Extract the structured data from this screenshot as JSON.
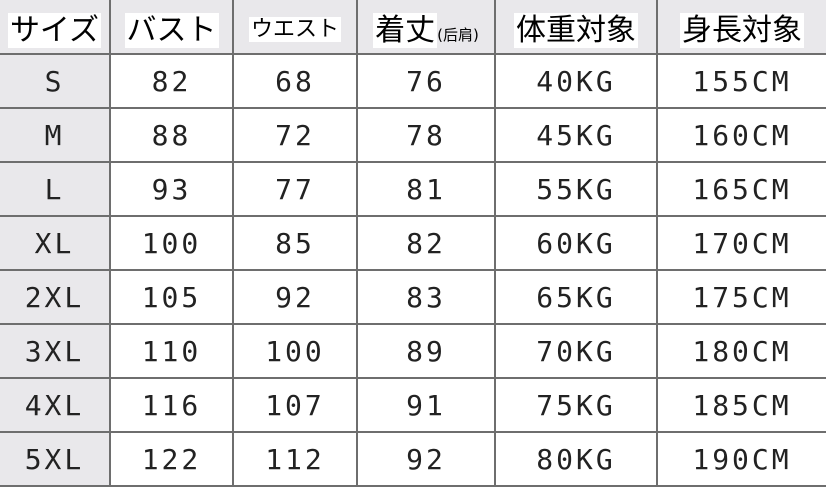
{
  "headers": {
    "size": "サイズ",
    "bust": "バスト",
    "waist": "ウエスト",
    "length": "着丈",
    "length_note": "(后肩)",
    "weight": "体重対象",
    "height": "身長対象"
  },
  "rows": [
    [
      "S",
      "82",
      "68",
      "76",
      "40KG",
      "155CM"
    ],
    [
      "M",
      "88",
      "72",
      "78",
      "45KG",
      "160CM"
    ],
    [
      "L",
      "93",
      "77",
      "81",
      "55KG",
      "165CM"
    ],
    [
      "XL",
      "100",
      "85",
      "82",
      "60KG",
      "170CM"
    ],
    [
      "2XL",
      "105",
      "92",
      "83",
      "65KG",
      "175CM"
    ],
    [
      "3XL",
      "110",
      "100",
      "89",
      "70KG",
      "180CM"
    ],
    [
      "4XL",
      "116",
      "107",
      "91",
      "75KG",
      "185CM"
    ],
    [
      "5XL",
      "122",
      "112",
      "92",
      "80KG",
      "190CM"
    ]
  ],
  "colors": {
    "header_bg": "#e9e8eb",
    "grid": "#6e6e6e"
  }
}
